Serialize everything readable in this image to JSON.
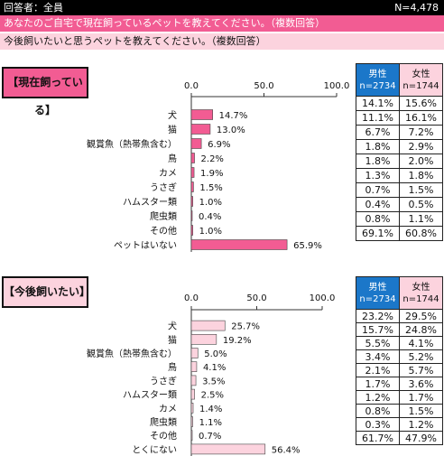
{
  "header": {
    "respondents": "回答者：全員",
    "n": "N=4,478",
    "question1": "あなたのご自宅で現在飼っているペットを教えてください。（複数回答）",
    "question2": "今後飼いたいと思うペットを教えてください。（複数回答）"
  },
  "colors": {
    "section1_bar": "#f25c93",
    "section2_bar": "#fcd3de",
    "male_header": "#1b77c9",
    "female_header": "#fcd3de"
  },
  "chart_data": [
    {
      "type": "bar",
      "orientation": "horizontal",
      "title": "【現在飼っている】",
      "ticks": [
        "0.0",
        "50.0",
        "100.0"
      ],
      "xlim": [
        0,
        100
      ],
      "categories": [
        "犬",
        "猫",
        "観賞魚（熱帯魚含む）",
        "鳥",
        "カメ",
        "うさぎ",
        "ハムスター類",
        "爬虫類",
        "その他",
        "ペットはいない"
      ],
      "values": [
        14.7,
        13.0,
        6.9,
        2.2,
        1.9,
        1.5,
        1.0,
        0.4,
        1.0,
        65.9
      ],
      "value_labels": [
        "14.7%",
        "13.0%",
        "6.9%",
        "2.2%",
        "1.9%",
        "1.5%",
        "1.0%",
        "0.4%",
        "1.0%",
        "65.9%"
      ],
      "table": {
        "male_header": [
          "男性",
          "n=2734"
        ],
        "female_header": [
          "女性",
          "n=1744"
        ],
        "male": [
          "14.1%",
          "11.1%",
          "6.7%",
          "1.8%",
          "1.8%",
          "1.3%",
          "0.7%",
          "0.4%",
          "0.8%",
          "69.1%"
        ],
        "female": [
          "15.6%",
          "16.1%",
          "7.2%",
          "2.9%",
          "2.0%",
          "1.8%",
          "1.5%",
          "0.5%",
          "1.1%",
          "60.8%"
        ]
      }
    },
    {
      "type": "bar",
      "orientation": "horizontal",
      "title": "【今後飼いたい】",
      "ticks": [
        "0.0",
        "50.0",
        "100.0"
      ],
      "xlim": [
        0,
        100
      ],
      "categories": [
        "犬",
        "猫",
        "観賞魚（熱帯魚含む）",
        "鳥",
        "うさぎ",
        "ハムスター類",
        "カメ",
        "爬虫類",
        "その他",
        "とくにない"
      ],
      "values": [
        25.7,
        19.2,
        5.0,
        4.1,
        3.5,
        2.5,
        1.4,
        1.1,
        0.7,
        56.4
      ],
      "value_labels": [
        "25.7%",
        "19.2%",
        "5.0%",
        "4.1%",
        "3.5%",
        "2.5%",
        "1.4%",
        "1.1%",
        "0.7%",
        "56.4%"
      ],
      "table": {
        "male_header": [
          "男性",
          "n=2734"
        ],
        "female_header": [
          "女性",
          "n=1744"
        ],
        "male": [
          "23.2%",
          "15.7%",
          "5.5%",
          "3.4%",
          "2.1%",
          "1.7%",
          "1.2%",
          "0.8%",
          "0.3%",
          "61.7%"
        ],
        "female": [
          "29.5%",
          "24.8%",
          "4.1%",
          "5.2%",
          "5.7%",
          "3.6%",
          "1.7%",
          "1.5%",
          "1.2%",
          "47.9%"
        ]
      }
    }
  ]
}
